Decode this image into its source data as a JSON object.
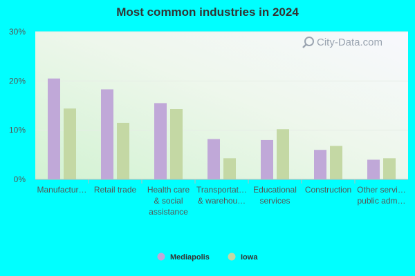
{
  "chart_data": {
    "type": "bar",
    "title": "Most common industries in 2024",
    "xlabel": "",
    "ylabel": "",
    "ylim": [
      0,
      30
    ],
    "yticks": [
      "0%",
      "10%",
      "20%",
      "30%"
    ],
    "categories": [
      [
        "Manufactur…"
      ],
      [
        "Retail trade"
      ],
      [
        "Health care",
        "& social",
        "assistance"
      ],
      [
        "Transportat…",
        "& warehou…"
      ],
      [
        "Educational",
        "services"
      ],
      [
        "Construction"
      ],
      [
        "Other servi…",
        "public adm…"
      ]
    ],
    "series": [
      {
        "name": "Mediapolis",
        "color": "#c0a8d8",
        "values": [
          20.5,
          18.3,
          15.5,
          8.2,
          8.0,
          6.0,
          4.0
        ]
      },
      {
        "name": "Iowa",
        "color": "#c4d8a4",
        "values": [
          14.4,
          11.5,
          14.3,
          4.3,
          10.2,
          6.8,
          4.3
        ]
      }
    ],
    "grid": true,
    "legend_position": "bottom"
  },
  "watermark": {
    "text": "City-Data.com",
    "icon": "magnifier-icon"
  }
}
